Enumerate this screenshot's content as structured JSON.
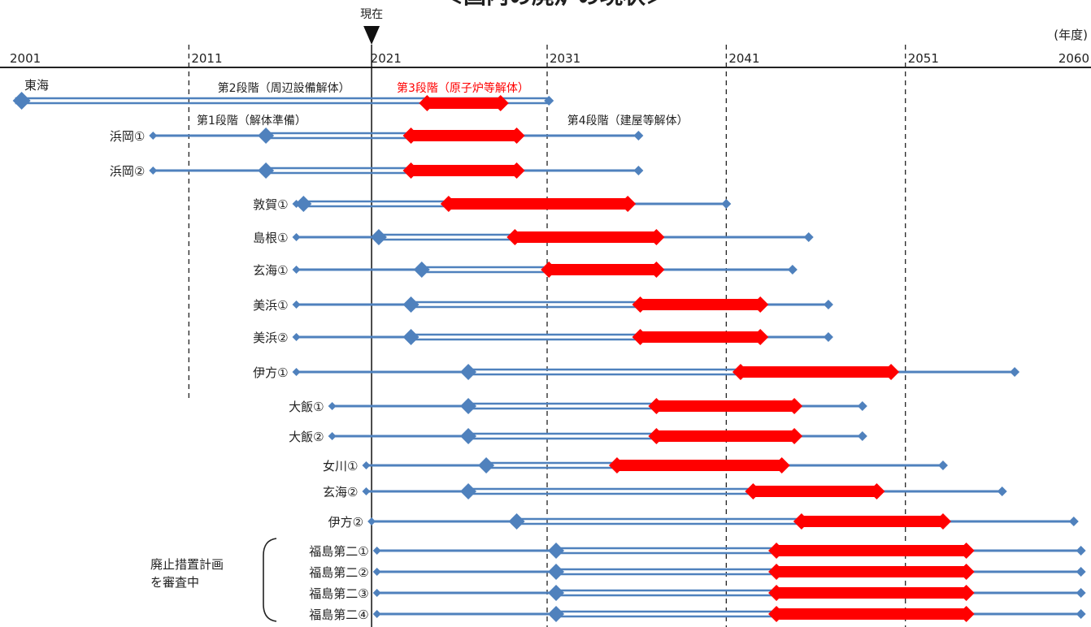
{
  "chart_data": {
    "type": "timeline",
    "title": "＜国内の廃炉の現状＞",
    "x_unit": "(年度)",
    "x_range": [
      2001,
      2060
    ],
    "x_ticks": [
      {
        "year": 2001,
        "label": "2001"
      },
      {
        "year": 2011,
        "label": "2011"
      },
      {
        "year": 2021,
        "label": "2021"
      },
      {
        "year": 2031,
        "label": "2031"
      },
      {
        "year": 2041,
        "label": "2041"
      },
      {
        "year": 2051,
        "label": "2051"
      },
      {
        "year": 2060,
        "label": "2060"
      }
    ],
    "gridlines": [
      2011,
      2031,
      2041,
      2051
    ],
    "current_marker": {
      "label": "現在",
      "year": 2021.2
    },
    "stage_labels": [
      {
        "text": "第2段階（周辺設備解体）",
        "year": 2016.3,
        "row": 0,
        "color": "black"
      },
      {
        "text": "第3段階（原子炉等解体）",
        "year": 2026.3,
        "row": 0,
        "color": "red"
      },
      {
        "text": "第1段階（解体準備）",
        "year": 2014.5,
        "row": 1,
        "color": "black"
      },
      {
        "text": "第4段階（建屋等解体）",
        "year": 2035.5,
        "row": 1,
        "color": "black"
      }
    ],
    "series": [
      {
        "name": "東海",
        "start": 2001.3,
        "p2": 2001.3,
        "p3": 2024.3,
        "p4": 2028.4,
        "end": 2031.1
      },
      {
        "name": "浜岡①",
        "start": 2009.0,
        "p2": 2015.3,
        "p3": 2023.4,
        "p4": 2029.3,
        "end": 2036.1
      },
      {
        "name": "浜岡②",
        "start": 2009.0,
        "p2": 2015.3,
        "p3": 2023.4,
        "p4": 2029.3,
        "end": 2036.1
      },
      {
        "name": "敦賀①",
        "start": 2017.0,
        "p2": 2017.4,
        "p3": 2025.5,
        "p4": 2035.5,
        "end": 2041.0
      },
      {
        "name": "島根①",
        "start": 2017.0,
        "p2": 2021.6,
        "p3": 2029.2,
        "p4": 2037.1,
        "end": 2045.6
      },
      {
        "name": "玄海①",
        "start": 2017.0,
        "p2": 2024.0,
        "p3": 2031.1,
        "p4": 2037.1,
        "end": 2044.7
      },
      {
        "name": "美浜①",
        "start": 2017.0,
        "p2": 2023.4,
        "p3": 2036.2,
        "p4": 2042.9,
        "end": 2046.7
      },
      {
        "name": "美浜②",
        "start": 2017.0,
        "p2": 2023.4,
        "p3": 2036.2,
        "p4": 2042.9,
        "end": 2046.7
      },
      {
        "name": "伊方①",
        "start": 2017.0,
        "p2": 2026.6,
        "p3": 2041.8,
        "p4": 2050.2,
        "end": 2057.1
      },
      {
        "name": "大飯①",
        "start": 2019.0,
        "p2": 2026.6,
        "p3": 2037.1,
        "p4": 2044.8,
        "end": 2048.6
      },
      {
        "name": "大飯②",
        "start": 2019.0,
        "p2": 2026.6,
        "p3": 2037.1,
        "p4": 2044.8,
        "end": 2048.6
      },
      {
        "name": "女川①",
        "start": 2020.9,
        "p2": 2027.6,
        "p3": 2034.9,
        "p4": 2044.1,
        "end": 2053.1
      },
      {
        "name": "玄海②",
        "start": 2020.9,
        "p2": 2026.6,
        "p3": 2042.5,
        "p4": 2049.4,
        "end": 2056.4
      },
      {
        "name": "伊方②",
        "start": 2021.2,
        "p2": 2029.3,
        "p3": 2045.2,
        "p4": 2053.1,
        "end": 2060.4
      },
      {
        "name": "福島第二①",
        "start": 2021.5,
        "p2": 2031.5,
        "p3": 2043.8,
        "p4": 2054.4,
        "end": 2060.8
      },
      {
        "name": "福島第二②",
        "start": 2021.5,
        "p2": 2031.5,
        "p3": 2043.8,
        "p4": 2054.4,
        "end": 2060.8
      },
      {
        "name": "福島第二③",
        "start": 2021.5,
        "p2": 2031.5,
        "p3": 2043.8,
        "p4": 2054.4,
        "end": 2060.8
      },
      {
        "name": "福島第二④",
        "start": 2021.5,
        "p2": 2031.5,
        "p3": 2043.8,
        "p4": 2054.4,
        "end": 2060.8
      }
    ],
    "note": {
      "lines": [
        "廃止措置計画",
        "を審査中"
      ]
    },
    "colors": {
      "blue": "#4f81bd",
      "red": "#ff0000",
      "axis": "#222222"
    }
  }
}
